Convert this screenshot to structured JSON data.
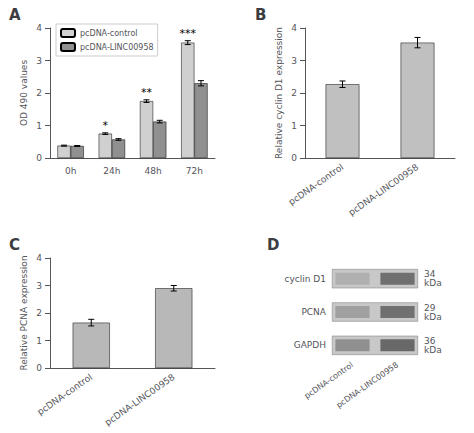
{
  "chart_data": [
    {
      "type": "bar",
      "title": "A",
      "ylabel": "OD 490 values",
      "categories": [
        "0h",
        "24h",
        "48h",
        "72h"
      ],
      "series": [
        {
          "name": "pcDNA-control",
          "color": "#d0d0d0",
          "values": [
            0.38,
            0.75,
            1.75,
            3.55
          ],
          "errors": [
            0.015,
            0.025,
            0.04,
            0.06
          ]
        },
        {
          "name": "pcDNA-LINC00958",
          "color": "#909090",
          "values": [
            0.37,
            0.57,
            1.12,
            2.3
          ],
          "errors": [
            0.015,
            0.025,
            0.04,
            0.08
          ]
        }
      ],
      "ylim": [
        0,
        4
      ],
      "yticks": [
        0,
        1,
        2,
        3,
        4
      ],
      "grid": false,
      "legend": "upper left",
      "annotations": [
        {
          "text": "*",
          "category": "24h",
          "series": "pcDNA-control"
        },
        {
          "text": "**",
          "category": "48h",
          "series": "pcDNA-control"
        },
        {
          "text": "***",
          "category": "72h",
          "series": "pcDNA-control"
        }
      ]
    },
    {
      "type": "bar",
      "title": "B",
      "ylabel": "Relative cyclin D1 expression",
      "categories": [
        "pcDNA-control",
        "pcDNA-LINC00958"
      ],
      "values": [
        2.27,
        3.55
      ],
      "errors": [
        0.1,
        0.16
      ],
      "color": "#c0c0c0",
      "ylim": [
        0,
        4
      ],
      "yticks": [
        0,
        1,
        2,
        3,
        4
      ],
      "grid": false
    },
    {
      "type": "bar",
      "title": "C",
      "ylabel": "Relative PCNA expression",
      "categories": [
        "pcDNA-control",
        "pcDNA-LINC00958"
      ],
      "values": [
        1.65,
        2.9
      ],
      "errors": [
        0.12,
        0.1
      ],
      "color": "#b8b8b8",
      "ylim": [
        0,
        4
      ],
      "yticks": [
        0,
        1,
        2,
        3,
        4
      ],
      "grid": false
    },
    {
      "type": "blot",
      "title": "D",
      "categories": [
        "pcDNA-control",
        "pcDNA-LINC00958"
      ],
      "rows": [
        "cyclin D1",
        "PCNA",
        "GAPDH"
      ],
      "row_labels": [
        "34",
        "29",
        "36"
      ],
      "unit": "kDa",
      "band_colors": [
        [
          "#b0b0b0",
          "#a0a0a0",
          "#909090"
        ],
        [
          "#707070",
          "#707070",
          "#686868"
        ]
      ],
      "color": "#c8c8c8"
    }
  ]
}
